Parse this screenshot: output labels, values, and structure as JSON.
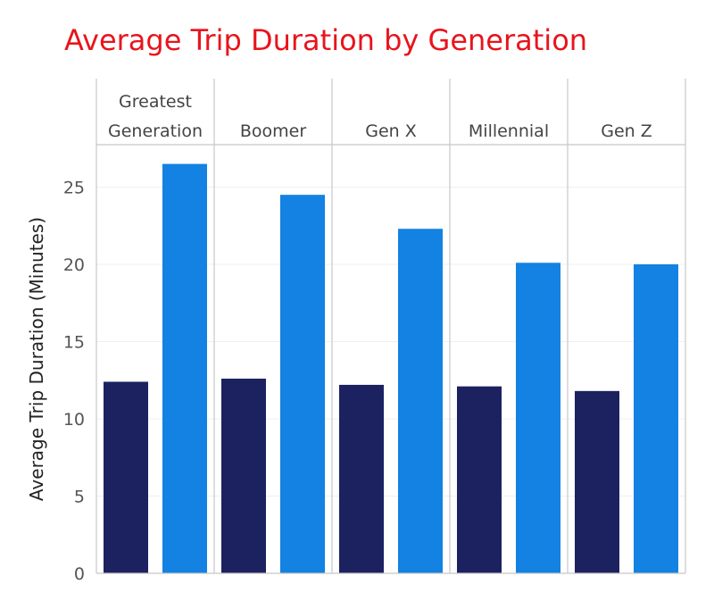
{
  "chart_data": {
    "type": "bar",
    "title": "Average Trip Duration by Generation",
    "ylabel": "Average Trip Duration (Minutes)",
    "ylim": [
      0,
      28
    ],
    "yticks": [
      0,
      5,
      10,
      15,
      20,
      25
    ],
    "grid": true,
    "legend": "none",
    "categories": [
      [
        "Greatest",
        "Generation"
      ],
      [
        "Boomer"
      ],
      [
        "Gen X"
      ],
      [
        "Millennial"
      ],
      [
        "Gen Z"
      ]
    ],
    "series": [
      {
        "color": "#1c2260",
        "values": [
          12.4,
          12.6,
          12.2,
          12.1,
          11.8
        ]
      },
      {
        "color": "#1382e2",
        "values": [
          26.5,
          24.5,
          22.3,
          20.1,
          20.0
        ]
      }
    ]
  },
  "colors": {
    "title": "#e8141c",
    "grid": "#efefef",
    "divider": "#c8c8c8"
  }
}
